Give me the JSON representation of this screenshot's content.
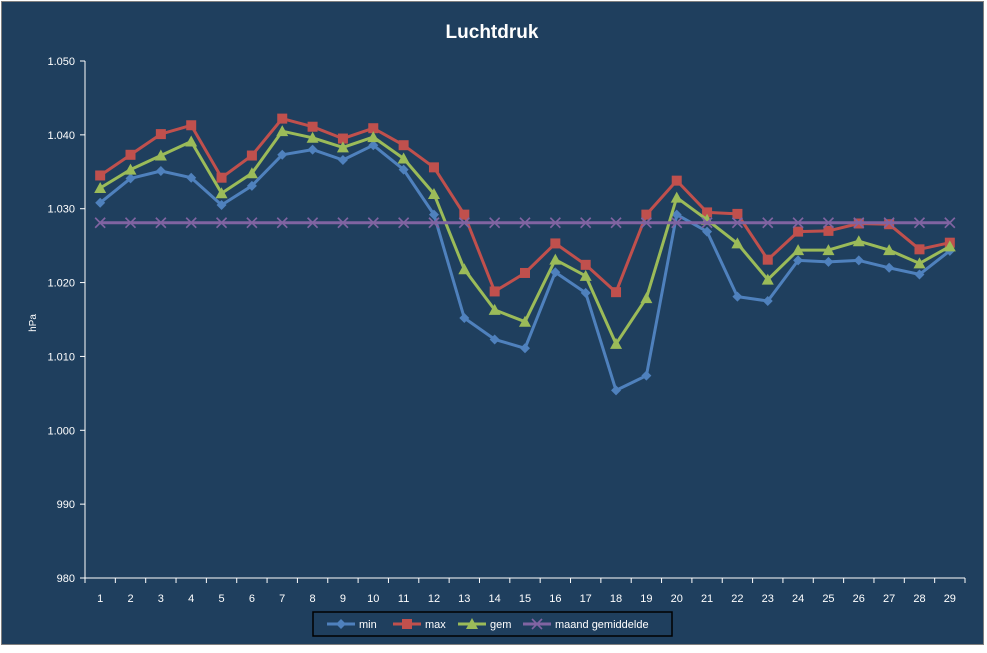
{
  "chart_data": {
    "type": "line",
    "title": "Luchtdruk",
    "xlabel": "",
    "ylabel": "hPa",
    "ylim": [
      980,
      1050
    ],
    "y_ticks": [
      "980",
      "990",
      "1.000",
      "1.010",
      "1.020",
      "1.030",
      "1.040",
      "1.050"
    ],
    "grid": false,
    "legend_position": "bottom",
    "categories": [
      "1",
      "2",
      "3",
      "4",
      "5",
      "6",
      "7",
      "8",
      "9",
      "10",
      "11",
      "12",
      "13",
      "14",
      "15",
      "16",
      "17",
      "18",
      "19",
      "20",
      "21",
      "22",
      "23",
      "24",
      "25",
      "26",
      "27",
      "28",
      "29"
    ],
    "series": [
      {
        "name": "min",
        "color": "#4f81bd",
        "marker": "diamond",
        "values": [
          1030.8,
          1034.1,
          1035.1,
          1034.2,
          1030.5,
          1033.1,
          1037.3,
          1038.0,
          1036.6,
          1038.6,
          1035.3,
          1029.2,
          1015.2,
          1012.3,
          1011.1,
          1021.4,
          1018.6,
          1005.4,
          1007.4,
          1029.2,
          1026.9,
          1018.1,
          1017.5,
          1023.0,
          1022.8,
          1023.0,
          1022.0,
          1021.1,
          1024.3
        ]
      },
      {
        "name": "max",
        "color": "#c0504d",
        "marker": "square",
        "values": [
          1034.5,
          1037.3,
          1040.1,
          1041.3,
          1034.2,
          1037.2,
          1042.2,
          1041.1,
          1039.5,
          1040.9,
          1038.6,
          1035.6,
          1029.2,
          1018.8,
          1021.3,
          1025.3,
          1022.4,
          1018.7,
          1029.2,
          1033.8,
          1029.5,
          1029.3,
          1023.1,
          1026.9,
          1027.0,
          1028.0,
          1027.9,
          1024.5,
          1025.4
        ]
      },
      {
        "name": "gem",
        "color": "#9bbb59",
        "marker": "triangle",
        "values": [
          1032.8,
          1035.3,
          1037.2,
          1039.1,
          1032.1,
          1034.8,
          1040.5,
          1039.6,
          1038.3,
          1039.7,
          1036.8,
          1032.0,
          1021.8,
          1016.3,
          1014.7,
          1023.1,
          1020.9,
          1011.7,
          1017.9,
          1031.5,
          1028.5,
          1025.3,
          1020.4,
          1024.4,
          1024.4,
          1025.6,
          1024.4,
          1022.6,
          1024.9
        ]
      },
      {
        "name": "maand gemiddelde",
        "color": "#8064a2",
        "marker": "x",
        "values": [
          1028.1,
          1028.1,
          1028.1,
          1028.1,
          1028.1,
          1028.1,
          1028.1,
          1028.1,
          1028.1,
          1028.1,
          1028.1,
          1028.1,
          1028.1,
          1028.1,
          1028.1,
          1028.1,
          1028.1,
          1028.1,
          1028.1,
          1028.1,
          1028.1,
          1028.1,
          1028.1,
          1028.1,
          1028.1,
          1028.1,
          1028.1,
          1028.1,
          1028.1
        ]
      }
    ],
    "colors": {
      "background": "#1f3f5e",
      "frame": "#7f7f7f",
      "text": "#ffffff",
      "axis": "#ffffff"
    }
  }
}
